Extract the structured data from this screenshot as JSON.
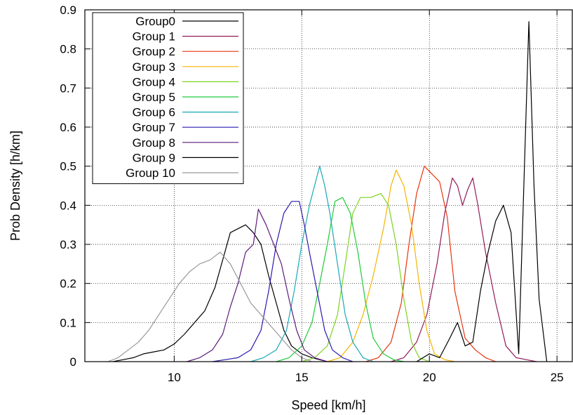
{
  "chart_data": {
    "type": "line",
    "xlabel": "Speed [km/h]",
    "ylabel": "Prob Density [h/km]",
    "xlim": [
      6.5,
      25.6
    ],
    "ylim": [
      0,
      0.9
    ],
    "xticks": [
      10,
      15,
      20,
      25
    ],
    "yticks": [
      0,
      0.1,
      0.2,
      0.3,
      0.4,
      0.5,
      0.6,
      0.7,
      0.8,
      0.9
    ],
    "xtick_labels": [
      "10",
      "15",
      "20",
      "25"
    ],
    "ytick_labels": [
      "0",
      "0.1",
      "0.2",
      "0.3",
      "0.4",
      "0.5",
      "0.6",
      "0.7",
      "0.8",
      "0.9"
    ],
    "grid": true,
    "legend_position": "top-left",
    "series": [
      {
        "name": "Group0",
        "color": "#000000",
        "x": [
          7.6,
          8.0,
          8.4,
          8.8,
          9.2,
          9.6,
          10.0,
          10.4,
          10.8,
          11.2,
          11.6,
          11.9,
          12.2,
          12.5,
          12.8,
          13.1,
          13.4,
          13.7,
          14.0,
          14.3,
          14.6,
          15.0,
          15.4,
          16.0,
          17.0
        ],
        "y": [
          0.0,
          0.005,
          0.01,
          0.02,
          0.025,
          0.03,
          0.045,
          0.07,
          0.1,
          0.13,
          0.19,
          0.26,
          0.33,
          0.34,
          0.35,
          0.33,
          0.3,
          0.22,
          0.15,
          0.08,
          0.04,
          0.02,
          0.01,
          0.0,
          0.0
        ]
      },
      {
        "name": "Group 1",
        "color": "#941b58",
        "x": [
          18.5,
          19.0,
          19.5,
          19.9,
          20.3,
          20.6,
          20.9,
          21.1,
          21.3,
          21.5,
          21.7,
          21.9,
          22.2,
          22.6,
          23.0,
          23.4,
          23.8,
          24.2
        ],
        "y": [
          0.0,
          0.01,
          0.05,
          0.12,
          0.25,
          0.38,
          0.47,
          0.45,
          0.4,
          0.44,
          0.47,
          0.4,
          0.28,
          0.15,
          0.04,
          0.01,
          0.005,
          0.0
        ]
      },
      {
        "name": "Group 2",
        "color": "#e8350f",
        "x": [
          17.5,
          18.0,
          18.5,
          18.9,
          19.2,
          19.5,
          19.8,
          20.1,
          20.4,
          20.7,
          21.0,
          21.4,
          21.8,
          22.2,
          22.6
        ],
        "y": [
          0.0,
          0.01,
          0.05,
          0.15,
          0.3,
          0.43,
          0.5,
          0.48,
          0.46,
          0.37,
          0.18,
          0.06,
          0.03,
          0.01,
          0.0
        ]
      },
      {
        "name": "Group 3",
        "color": "#f5b400",
        "x": [
          16.0,
          16.5,
          17.0,
          17.4,
          17.8,
          18.2,
          18.5,
          18.7,
          19.0,
          19.3,
          19.6,
          19.9,
          20.2,
          20.6,
          21.0
        ],
        "y": [
          0.0,
          0.01,
          0.05,
          0.12,
          0.22,
          0.34,
          0.45,
          0.49,
          0.45,
          0.35,
          0.2,
          0.08,
          0.02,
          0.005,
          0.0
        ]
      },
      {
        "name": "Group 4",
        "color": "#7ed321",
        "x": [
          15.0,
          15.5,
          16.0,
          16.4,
          16.7,
          17.0,
          17.3,
          17.7,
          18.1,
          18.4,
          18.7,
          19.0,
          19.3,
          19.6,
          20.0
        ],
        "y": [
          0.0,
          0.01,
          0.04,
          0.12,
          0.25,
          0.38,
          0.42,
          0.42,
          0.43,
          0.4,
          0.3,
          0.16,
          0.05,
          0.01,
          0.0
        ]
      },
      {
        "name": "Group 5",
        "color": "#1fcb3a",
        "x": [
          14.0,
          14.5,
          15.0,
          15.4,
          15.7,
          16.0,
          16.3,
          16.6,
          16.9,
          17.2,
          17.5,
          17.8,
          18.2,
          18.6,
          19.0
        ],
        "y": [
          0.0,
          0.01,
          0.04,
          0.1,
          0.2,
          0.3,
          0.41,
          0.42,
          0.38,
          0.28,
          0.15,
          0.06,
          0.02,
          0.005,
          0.0
        ]
      },
      {
        "name": "Group 6",
        "color": "#19a8b8",
        "x": [
          13.0,
          13.5,
          14.0,
          14.4,
          14.7,
          15.0,
          15.3,
          15.5,
          15.7,
          15.9,
          16.1,
          16.4,
          16.7,
          17.0,
          17.4,
          17.8
        ],
        "y": [
          0.0,
          0.01,
          0.03,
          0.08,
          0.18,
          0.3,
          0.4,
          0.45,
          0.5,
          0.45,
          0.38,
          0.25,
          0.12,
          0.05,
          0.01,
          0.0
        ]
      },
      {
        "name": "Group 7",
        "color": "#2a1ab0",
        "x": [
          11.5,
          12.0,
          12.5,
          13.0,
          13.4,
          13.7,
          14.0,
          14.3,
          14.6,
          14.9,
          15.1,
          15.3,
          15.6,
          15.9,
          16.2,
          16.6,
          17.0
        ],
        "y": [
          0.0,
          0.005,
          0.01,
          0.03,
          0.08,
          0.18,
          0.3,
          0.38,
          0.41,
          0.41,
          0.35,
          0.28,
          0.18,
          0.08,
          0.03,
          0.01,
          0.0
        ]
      },
      {
        "name": "Group 8",
        "color": "#5c1a7a",
        "x": [
          10.5,
          11.0,
          11.5,
          11.9,
          12.2,
          12.5,
          12.8,
          13.1,
          13.3,
          13.6,
          13.9,
          14.2,
          14.5,
          14.8,
          15.1,
          15.5,
          16.0
        ],
        "y": [
          0.0,
          0.01,
          0.03,
          0.07,
          0.14,
          0.2,
          0.28,
          0.3,
          0.39,
          0.35,
          0.3,
          0.25,
          0.16,
          0.08,
          0.03,
          0.01,
          0.0
        ]
      },
      {
        "name": "Group 9",
        "color": "#000000",
        "x": [
          19.5,
          20.0,
          20.4,
          20.8,
          21.1,
          21.4,
          21.7,
          22.0,
          22.3,
          22.6,
          22.9,
          23.2,
          23.5,
          23.7,
          23.9,
          24.1,
          24.3,
          24.6
        ],
        "y": [
          0.0,
          0.02,
          0.01,
          0.06,
          0.1,
          0.04,
          0.05,
          0.18,
          0.28,
          0.36,
          0.4,
          0.33,
          0.02,
          0.45,
          0.87,
          0.45,
          0.16,
          0.0
        ]
      },
      {
        "name": "Group 10",
        "color": "#999999",
        "x": [
          7.4,
          7.8,
          8.2,
          8.6,
          9.0,
          9.4,
          9.8,
          10.2,
          10.6,
          11.0,
          11.4,
          11.8,
          12.2,
          12.6,
          13.0,
          13.4,
          13.8,
          14.2,
          14.6,
          15.0,
          15.4
        ],
        "y": [
          0.0,
          0.01,
          0.03,
          0.05,
          0.08,
          0.12,
          0.16,
          0.2,
          0.23,
          0.25,
          0.26,
          0.28,
          0.25,
          0.2,
          0.15,
          0.12,
          0.09,
          0.06,
          0.03,
          0.01,
          0.0
        ]
      }
    ]
  }
}
